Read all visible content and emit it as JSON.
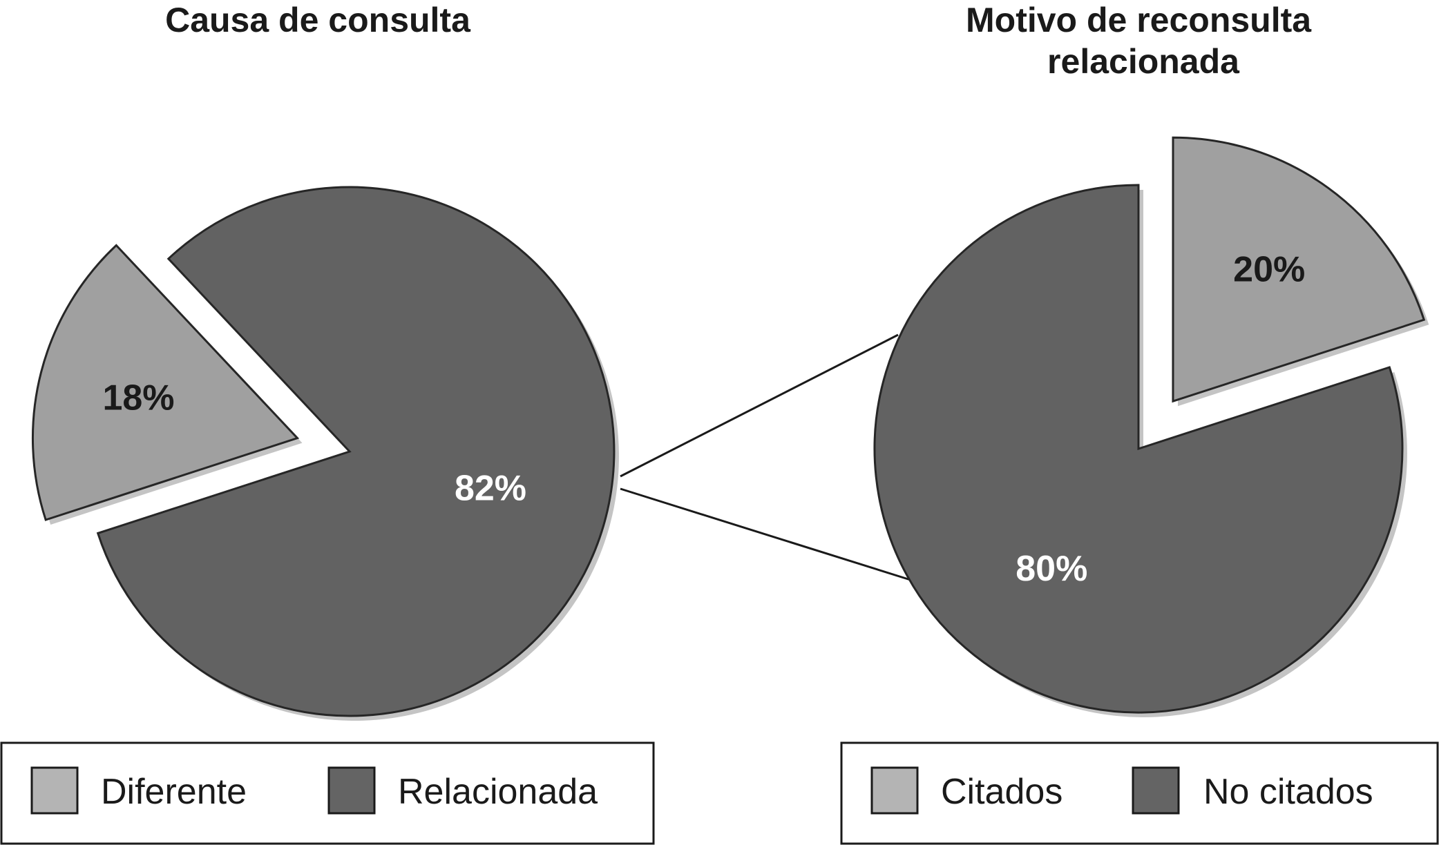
{
  "colors": {
    "light": "#a0a0a0",
    "dark": "#626262",
    "outline": "#262626",
    "shadow": "#c4c4c4",
    "legend_light": "#b4b4b4",
    "legend_dark": "#646464"
  },
  "chart_data": [
    {
      "type": "pie",
      "title": "Causa de consulta",
      "slices": [
        {
          "label": "Diferente",
          "value": 18,
          "display": "18%",
          "exploded": true
        },
        {
          "label": "Relacionada",
          "value": 82,
          "display": "82%",
          "exploded": false
        }
      ],
      "legend": {
        "placement": "bottom",
        "items": [
          "Diferente",
          "Relacionada"
        ]
      }
    },
    {
      "type": "pie",
      "title": "Motivo de reconsulta relacionada",
      "slices": [
        {
          "label": "Citados",
          "value": 20,
          "display": "20%",
          "exploded": true
        },
        {
          "label": "No citados",
          "value": 80,
          "display": "80%",
          "exploded": false
        }
      ],
      "legend": {
        "placement": "bottom",
        "items": [
          "Citados",
          "No citados"
        ]
      }
    }
  ]
}
